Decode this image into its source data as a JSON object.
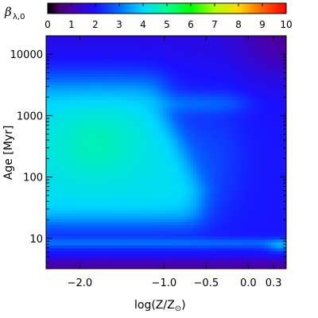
{
  "chart_data": {
    "type": "heatmap",
    "title": "",
    "xlabel": "log(Z/Z",
    "xlabel_sub": "⊙",
    "ylabel": "Age [Myr]",
    "x_scale": "linear",
    "y_scale": "log",
    "xlim": [
      -2.4,
      0.45
    ],
    "ylim": [
      3.2,
      20000
    ],
    "x_ticks": [
      {
        "value": -2.0,
        "label": "−2.0"
      },
      {
        "value": -1.0,
        "label": "−1.0"
      },
      {
        "value": -0.5,
        "label": "−0.5"
      },
      {
        "value": 0.0,
        "label": "0.0"
      },
      {
        "value": 0.3,
        "label": "0.3"
      }
    ],
    "y_ticks": [
      {
        "value": 10,
        "label": "10"
      },
      {
        "value": 100,
        "label": "100"
      },
      {
        "value": 1000,
        "label": "1000"
      },
      {
        "value": 10000,
        "label": "10000"
      }
    ],
    "colorbar": {
      "symbol": "β",
      "subscript": "λ,0",
      "range": [
        0,
        10
      ],
      "ticks": [
        "0",
        "1",
        "2",
        "3",
        "4",
        "5",
        "6",
        "7",
        "8",
        "9",
        "10"
      ],
      "colormap": "rainbow (black-purple-blue-cyan-green-yellow-red)",
      "position": "top"
    },
    "features": [
      {
        "note": "maximum value about 4.7 near log(Z)=-1.8, age ~200-600 Myr"
      },
      {
        "note": "minimum value about 1.2 at log(Z)=0.3-0.45, age >10000 Myr"
      }
    ]
  }
}
